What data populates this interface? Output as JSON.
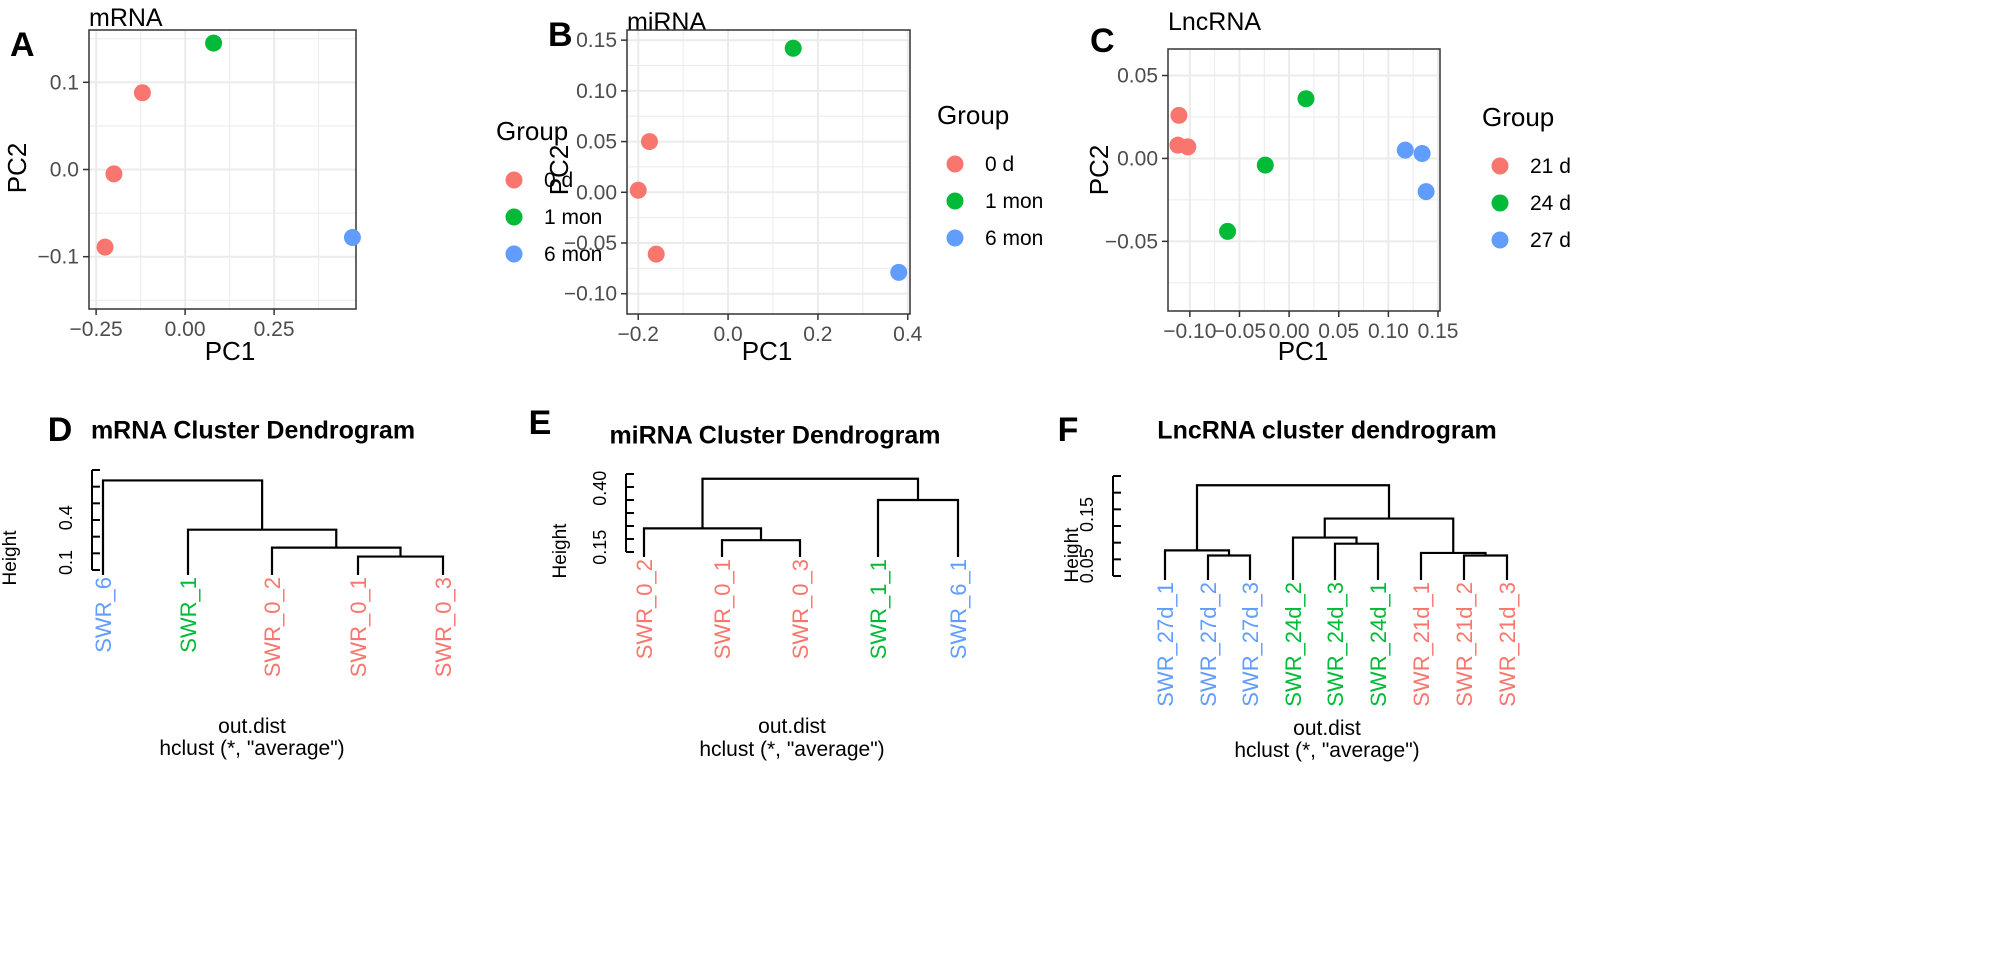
{
  "colors": {
    "group1": "#F8766D",
    "group2": "#00BA38",
    "group3": "#619CFF",
    "grid": "#EBEBEB",
    "panel_border": "#333333"
  },
  "chart_data": [
    {
      "id": "A",
      "type": "scatter",
      "title": "mRNA",
      "xlabel": "PC1",
      "ylabel": "PC2",
      "xlim": [
        -0.27,
        0.48
      ],
      "ylim": [
        -0.16,
        0.16
      ],
      "xticks": [
        -0.25,
        0,
        0.25
      ],
      "xtick_labels": [
        "−0.25",
        "0.00",
        "0.25"
      ],
      "yticks": [
        -0.1,
        0,
        0.1
      ],
      "ytick_labels": [
        "−0.1",
        "0.0",
        "0.1"
      ],
      "legend_title": "Group",
      "groups": [
        "0 d",
        "1 mon",
        "6 mon"
      ],
      "points": [
        {
          "x": -0.12,
          "y": 0.088,
          "group": 0
        },
        {
          "x": -0.2,
          "y": -0.005,
          "group": 0
        },
        {
          "x": -0.225,
          "y": -0.089,
          "group": 0
        },
        {
          "x": 0.08,
          "y": 0.145,
          "group": 1
        },
        {
          "x": 0.47,
          "y": -0.078,
          "group": 2
        }
      ]
    },
    {
      "id": "B",
      "type": "scatter",
      "title": "miRNA",
      "xlabel": "PC1",
      "ylabel": "PC2",
      "xlim": [
        -0.225,
        0.405
      ],
      "ylim": [
        -0.12,
        0.16
      ],
      "xticks": [
        -0.2,
        0,
        0.2,
        0.4
      ],
      "xtick_labels": [
        "−0.2",
        "0.0",
        "0.2",
        "0.4"
      ],
      "yticks": [
        -0.1,
        -0.05,
        0,
        0.05,
        0.1,
        0.15
      ],
      "ytick_labels": [
        "−0.10",
        "−0.05",
        "0.00",
        "0.05",
        "0.10",
        "0.15"
      ],
      "legend_title": "Group",
      "groups": [
        "0 d",
        "1 mon",
        "6 mon"
      ],
      "points": [
        {
          "x": -0.175,
          "y": 0.05,
          "group": 0
        },
        {
          "x": -0.2,
          "y": 0.002,
          "group": 0
        },
        {
          "x": -0.16,
          "y": -0.061,
          "group": 0
        },
        {
          "x": 0.145,
          "y": 0.142,
          "group": 1
        },
        {
          "x": 0.38,
          "y": -0.079,
          "group": 2
        }
      ]
    },
    {
      "id": "C",
      "type": "scatter",
      "title": "LncRNA",
      "xlabel": "PC1",
      "ylabel": "PC2",
      "xlim": [
        -0.122,
        0.152
      ],
      "ylim": [
        -0.092,
        0.066
      ],
      "xticks": [
        -0.1,
        -0.05,
        0,
        0.05,
        0.1,
        0.15
      ],
      "xtick_labels": [
        "−0.10",
        "−0.05",
        "0.00",
        "0.05",
        "0.10",
        "0.15"
      ],
      "yticks": [
        -0.05,
        0,
        0.05
      ],
      "ytick_labels": [
        "−0.05",
        "0.00",
        "0.05"
      ],
      "legend_title": "Group",
      "groups": [
        "21 d",
        "24 d",
        "27 d"
      ],
      "points": [
        {
          "x": -0.111,
          "y": 0.026,
          "group": 0
        },
        {
          "x": -0.112,
          "y": 0.008,
          "group": 0
        },
        {
          "x": -0.102,
          "y": 0.007,
          "group": 0
        },
        {
          "x": 0.017,
          "y": 0.036,
          "group": 1
        },
        {
          "x": -0.024,
          "y": -0.004,
          "group": 1
        },
        {
          "x": -0.062,
          "y": -0.044,
          "group": 1
        },
        {
          "x": 0.117,
          "y": 0.005,
          "group": 2
        },
        {
          "x": 0.134,
          "y": 0.003,
          "group": 2
        },
        {
          "x": 0.138,
          "y": -0.02,
          "group": 2
        }
      ]
    },
    {
      "id": "D",
      "type": "dendrogram",
      "title": "mRNA Cluster Dendrogram",
      "ylabel": "Height",
      "ylim": [
        0.05,
        0.72
      ],
      "yticks": [
        0.1,
        0.4
      ],
      "ytick_labels": [
        "0.1",
        "0.4"
      ],
      "leaves": [
        {
          "label": "SWR_6",
          "color": "#619CFF"
        },
        {
          "label": "SWR_1",
          "color": "#00BA38"
        },
        {
          "label": "SWR_0_2",
          "color": "#F8766D"
        },
        {
          "label": "SWR_0_1",
          "color": "#F8766D"
        },
        {
          "label": "SWR_0_3",
          "color": "#F8766D"
        }
      ],
      "merges": [
        [
          3,
          4,
          0.14
        ],
        [
          2,
          5,
          0.2
        ],
        [
          1,
          6,
          0.32
        ],
        [
          0,
          7,
          0.65
        ]
      ],
      "footer": [
        "out.dist",
        "hclust (*, \"average\")"
      ]
    },
    {
      "id": "E",
      "type": "dendrogram",
      "title": "miRNA Cluster Dendrogram",
      "ylabel": "Height",
      "ylim": [
        0.13,
        0.46
      ],
      "yticks": [
        0.15,
        0.4
      ],
      "ytick_labels": [
        "0.15",
        "0.40"
      ],
      "leaves": [
        {
          "label": "SWR_0_2",
          "color": "#F8766D"
        },
        {
          "label": "SWR_0_1",
          "color": "#F8766D"
        },
        {
          "label": "SWR_0_3",
          "color": "#F8766D"
        },
        {
          "label": "SWR_1_1",
          "color": "#00BA38"
        },
        {
          "label": "SWR_6_1",
          "color": "#619CFF"
        }
      ],
      "merges": [
        [
          1,
          2,
          0.18
        ],
        [
          0,
          5,
          0.23
        ],
        [
          3,
          4,
          0.35
        ],
        [
          6,
          7,
          0.44
        ]
      ],
      "footer": [
        "out.dist",
        "hclust (*, \"average\")"
      ]
    },
    {
      "id": "F",
      "type": "dendrogram",
      "title": "LncRNA cluster dendrogram",
      "ylabel": "Height",
      "ylim": [
        0.03,
        0.225
      ],
      "yticks": [
        0.05,
        0.15
      ],
      "ytick_labels": [
        "0.05",
        "0.15"
      ],
      "leaves": [
        {
          "label": "SWR_27d_1",
          "color": "#619CFF"
        },
        {
          "label": "SWR_27d_2",
          "color": "#619CFF"
        },
        {
          "label": "SWR_27d_3",
          "color": "#619CFF"
        },
        {
          "label": "SWR_24d_2",
          "color": "#00BA38"
        },
        {
          "label": "SWR_24d_3",
          "color": "#00BA38"
        },
        {
          "label": "SWR_24d_1",
          "color": "#00BA38"
        },
        {
          "label": "SWR_21d_1",
          "color": "#F8766D"
        },
        {
          "label": "SWR_21d_2",
          "color": "#F8766D"
        },
        {
          "label": "SWR_21d_3",
          "color": "#F8766D"
        }
      ],
      "merges": [
        [
          7,
          8,
          0.07
        ],
        [
          6,
          9,
          0.075
        ],
        [
          1,
          2,
          0.07
        ],
        [
          0,
          11,
          0.08
        ],
        [
          4,
          5,
          0.093
        ],
        [
          3,
          13,
          0.105
        ],
        [
          14,
          10,
          0.142
        ],
        [
          12,
          15,
          0.207
        ]
      ],
      "footer": [
        "out.dist",
        "hclust (*, \"average\")"
      ]
    }
  ]
}
